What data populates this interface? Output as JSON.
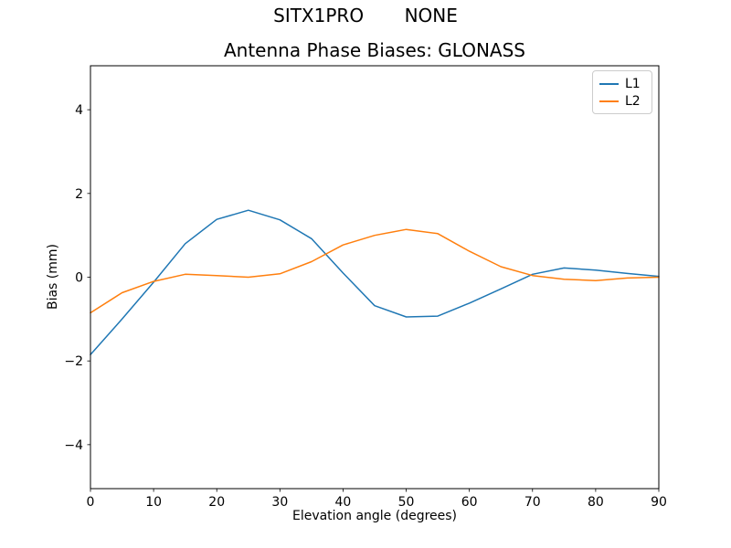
{
  "header": {
    "suptitle": "SITX1PRO       NONE"
  },
  "chart_data": {
    "type": "line",
    "title": "Antenna Phase Biases: GLONASS",
    "xlabel": "Elevation angle (degrees)",
    "ylabel": "Bias (mm)",
    "x": [
      0,
      5,
      10,
      15,
      20,
      25,
      30,
      35,
      40,
      45,
      50,
      55,
      60,
      65,
      70,
      75,
      80,
      85,
      90
    ],
    "series": [
      {
        "name": "L1",
        "color": "#1f77b4",
        "values": [
          -1.85,
          -1.0,
          -0.12,
          0.8,
          1.38,
          1.6,
          1.37,
          0.92,
          0.1,
          -0.68,
          -0.95,
          -0.93,
          -0.62,
          -0.28,
          0.07,
          0.22,
          0.17,
          0.09,
          0.02
        ]
      },
      {
        "name": "L2",
        "color": "#ff7f0e",
        "values": [
          -0.85,
          -0.37,
          -0.1,
          0.07,
          0.04,
          0.0,
          0.08,
          0.37,
          0.77,
          1.0,
          1.14,
          1.04,
          0.62,
          0.25,
          0.04,
          -0.05,
          -0.08,
          -0.02,
          0.0
        ]
      }
    ],
    "xlim": [
      0,
      90
    ],
    "ylim": [
      -5.05,
      5.05
    ],
    "xticks": [
      0,
      10,
      20,
      30,
      40,
      50,
      60,
      70,
      80,
      90
    ],
    "yticks": [
      -4,
      -2,
      0,
      2,
      4
    ],
    "xticklabels": [
      "0",
      "10",
      "20",
      "30",
      "40",
      "50",
      "60",
      "70",
      "80",
      "90"
    ],
    "yticklabels": [
      "−4",
      "−2",
      "0",
      "2",
      "4"
    ],
    "grid": false,
    "legend_position": "upper right",
    "axis_color": "#000000"
  }
}
